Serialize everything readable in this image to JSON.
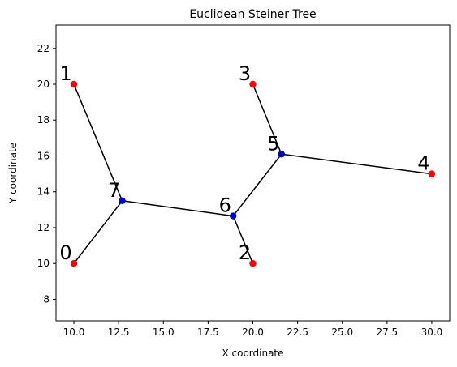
{
  "chart_data": {
    "type": "scatter",
    "title": "Euclidean Steiner Tree",
    "xlabel": "X coordinate",
    "ylabel": "Y coordinate",
    "xlim": [
      9.0,
      31.0
    ],
    "ylim": [
      6.8,
      23.3
    ],
    "xticks": [
      10.0,
      12.5,
      15.0,
      17.5,
      20.0,
      22.5,
      25.0,
      27.5,
      30.0
    ],
    "xtick_labels": [
      "10.0",
      "12.5",
      "15.0",
      "17.5",
      "20.0",
      "22.5",
      "25.0",
      "27.5",
      "30.0"
    ],
    "yticks": [
      8,
      10,
      12,
      14,
      16,
      18,
      20,
      22
    ],
    "ytick_labels": [
      "8",
      "10",
      "12",
      "14",
      "16",
      "18",
      "20",
      "22"
    ],
    "grid": false,
    "colors": {
      "terminal": "#ff0000",
      "steiner": "#0000cc",
      "edge": "#000000"
    },
    "nodes": [
      {
        "id": "0",
        "x": 10.0,
        "y": 10.0,
        "kind": "terminal"
      },
      {
        "id": "1",
        "x": 10.0,
        "y": 20.0,
        "kind": "terminal"
      },
      {
        "id": "2",
        "x": 20.0,
        "y": 10.0,
        "kind": "terminal"
      },
      {
        "id": "3",
        "x": 20.0,
        "y": 20.0,
        "kind": "terminal"
      },
      {
        "id": "4",
        "x": 30.0,
        "y": 15.0,
        "kind": "terminal"
      },
      {
        "id": "5",
        "x": 21.6,
        "y": 16.1,
        "kind": "steiner"
      },
      {
        "id": "6",
        "x": 18.9,
        "y": 12.65,
        "kind": "steiner"
      },
      {
        "id": "7",
        "x": 12.7,
        "y": 13.5,
        "kind": "steiner"
      }
    ],
    "edges": [
      [
        "1",
        "7"
      ],
      [
        "0",
        "7"
      ],
      [
        "7",
        "6"
      ],
      [
        "6",
        "2"
      ],
      [
        "6",
        "5"
      ],
      [
        "5",
        "3"
      ],
      [
        "5",
        "4"
      ]
    ]
  }
}
